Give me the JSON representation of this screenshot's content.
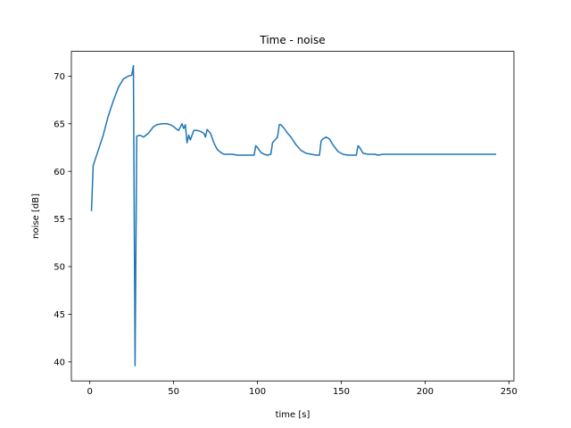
{
  "chart_data": {
    "type": "line",
    "title": "Time - noise",
    "xlabel": "time [s]",
    "ylabel": "noise [dB]",
    "xlim": [
      -11,
      253
    ],
    "ylim": [
      38.0,
      72.6
    ],
    "xticks": [
      0,
      50,
      100,
      150,
      200,
      250
    ],
    "yticks": [
      40,
      45,
      50,
      55,
      60,
      65,
      70
    ],
    "grid": false,
    "color": "#1f77b4",
    "series": [
      {
        "x": [
          1,
          2,
          5,
          8,
          11,
          14,
          17,
          20,
          23,
          25,
          26,
          27,
          28,
          30,
          32,
          35,
          38,
          40,
          43,
          46,
          48,
          50,
          52,
          53,
          55,
          56,
          57,
          58,
          59,
          60,
          62,
          64,
          66,
          68,
          69,
          70,
          72,
          74,
          76,
          78,
          80,
          82,
          85,
          88,
          92,
          95,
          98,
          99,
          100,
          102,
          104,
          106,
          108,
          109,
          111,
          112,
          113,
          114,
          116,
          118,
          120,
          123,
          126,
          129,
          132,
          135,
          137,
          138,
          139,
          141,
          143,
          145,
          148,
          151,
          154,
          157,
          159,
          160,
          161,
          163,
          166,
          170,
          172,
          175,
          180,
          190,
          200,
          210,
          220,
          230,
          242
        ],
        "y": [
          55.9,
          60.6,
          62.2,
          63.8,
          65.8,
          67.4,
          68.8,
          69.7,
          70.0,
          70.1,
          71.1,
          39.6,
          63.7,
          63.8,
          63.6,
          64.0,
          64.7,
          64.9,
          65.0,
          65.0,
          64.9,
          64.7,
          64.4,
          64.3,
          65.0,
          64.5,
          64.9,
          63.0,
          63.8,
          63.3,
          64.3,
          64.3,
          64.2,
          64.0,
          63.6,
          64.4,
          64.0,
          63.0,
          62.3,
          62.0,
          61.8,
          61.8,
          61.8,
          61.7,
          61.7,
          61.7,
          61.7,
          62.7,
          62.5,
          62.0,
          61.8,
          61.7,
          61.8,
          63.0,
          63.4,
          63.6,
          64.9,
          64.9,
          64.5,
          64.0,
          63.6,
          62.8,
          62.2,
          61.9,
          61.8,
          61.7,
          61.7,
          63.2,
          63.4,
          63.6,
          63.4,
          62.8,
          62.1,
          61.8,
          61.7,
          61.7,
          61.7,
          62.7,
          62.5,
          61.9,
          61.8,
          61.8,
          61.7,
          61.8,
          61.8,
          61.8,
          61.8,
          61.8,
          61.8,
          61.8,
          61.8
        ]
      }
    ]
  }
}
